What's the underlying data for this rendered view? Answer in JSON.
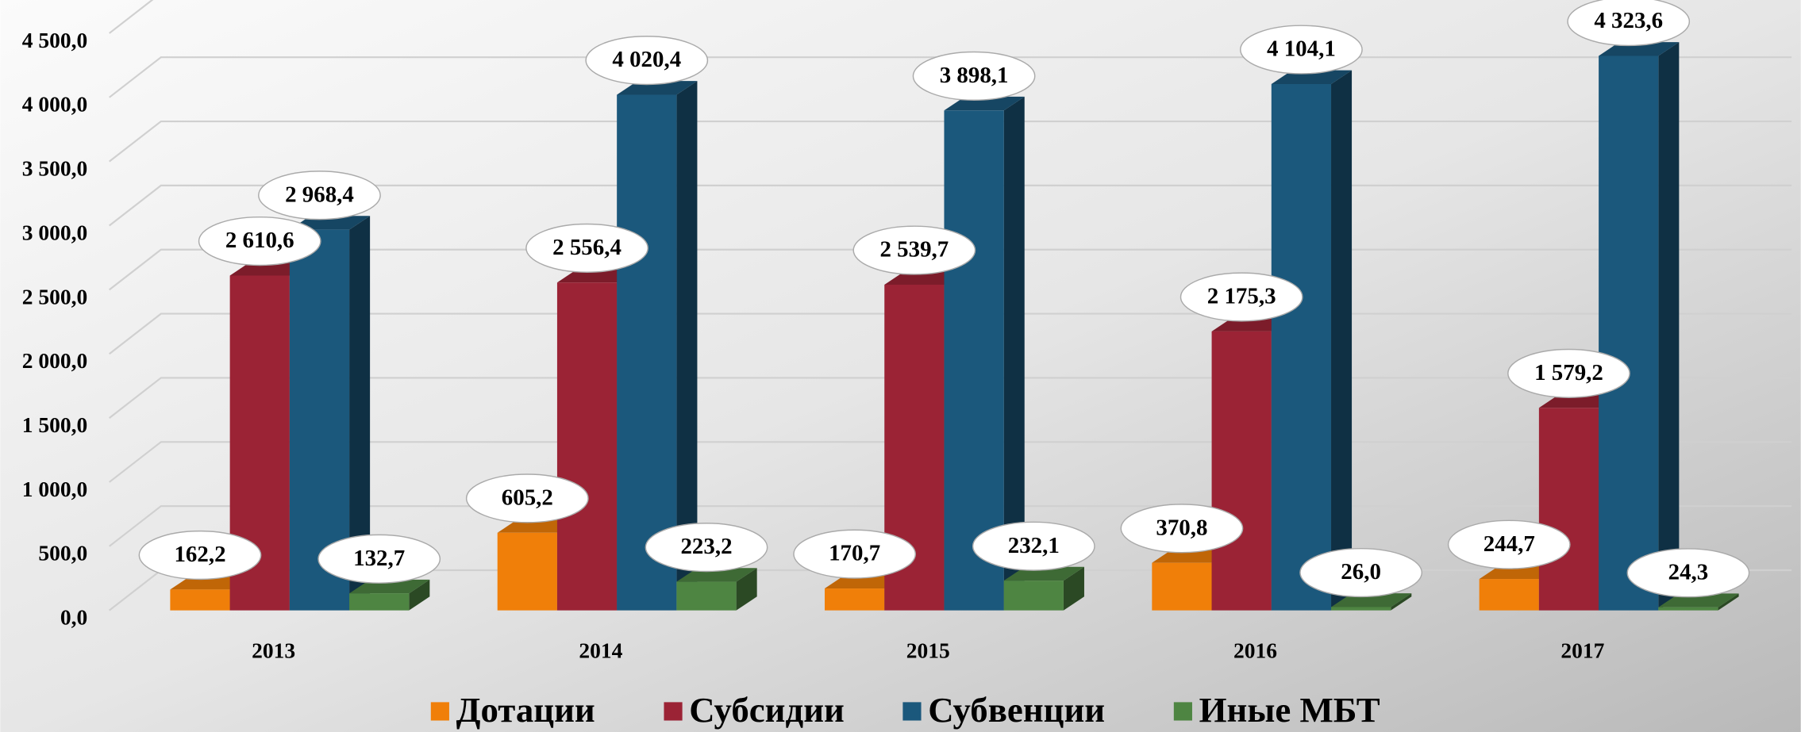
{
  "chart_data": {
    "type": "bar3d",
    "categories": [
      "2013",
      "2014",
      "2015",
      "2016",
      "2017"
    ],
    "series": [
      {
        "name": "Дотации",
        "color": "#f07f09",
        "values": [
          162.2,
          605.2,
          170.7,
          370.8,
          244.7
        ],
        "value_labels": [
          "162,2",
          "605,2",
          "170,7",
          "370,8",
          "244,7"
        ]
      },
      {
        "name": "Субсидии",
        "color": "#9b2335",
        "values": [
          2610.6,
          2556.4,
          2539.7,
          2175.3,
          1579.2
        ],
        "value_labels": [
          "2 610,6",
          "2 556,4",
          "2 539,7",
          "2 175,3",
          "1 579,2"
        ]
      },
      {
        "name": "Субвенции",
        "color": "#1b587c",
        "values": [
          2968.4,
          4020.4,
          3898.1,
          4104.1,
          4323.6
        ],
        "value_labels": [
          "2 968,4",
          "4 020,4",
          "3 898,1",
          "4 104,1",
          "4 323,6"
        ]
      },
      {
        "name": "Иные МБТ",
        "color": "#4e8542",
        "values": [
          132.7,
          223.2,
          232.1,
          26.0,
          24.3
        ],
        "value_labels": [
          "132,7",
          "223,2",
          "232,1",
          "26,0",
          "24,3"
        ]
      }
    ],
    "ylim": [
      0,
      4500
    ],
    "yticks": [
      {
        "value": 0,
        "label": "0,0"
      },
      {
        "value": 500,
        "label": "500,0"
      },
      {
        "value": 1000,
        "label": "1 000,0"
      },
      {
        "value": 1500,
        "label": "1 500,0"
      },
      {
        "value": 2000,
        "label": "2 000,0"
      },
      {
        "value": 2500,
        "label": "2 500,0"
      },
      {
        "value": 3000,
        "label": "3 000,0"
      },
      {
        "value": 3500,
        "label": "3 500,0"
      },
      {
        "value": 4000,
        "label": "4 000,0"
      },
      {
        "value": 4500,
        "label": "4 500,0"
      }
    ],
    "grid": true,
    "legend": "bottom"
  }
}
